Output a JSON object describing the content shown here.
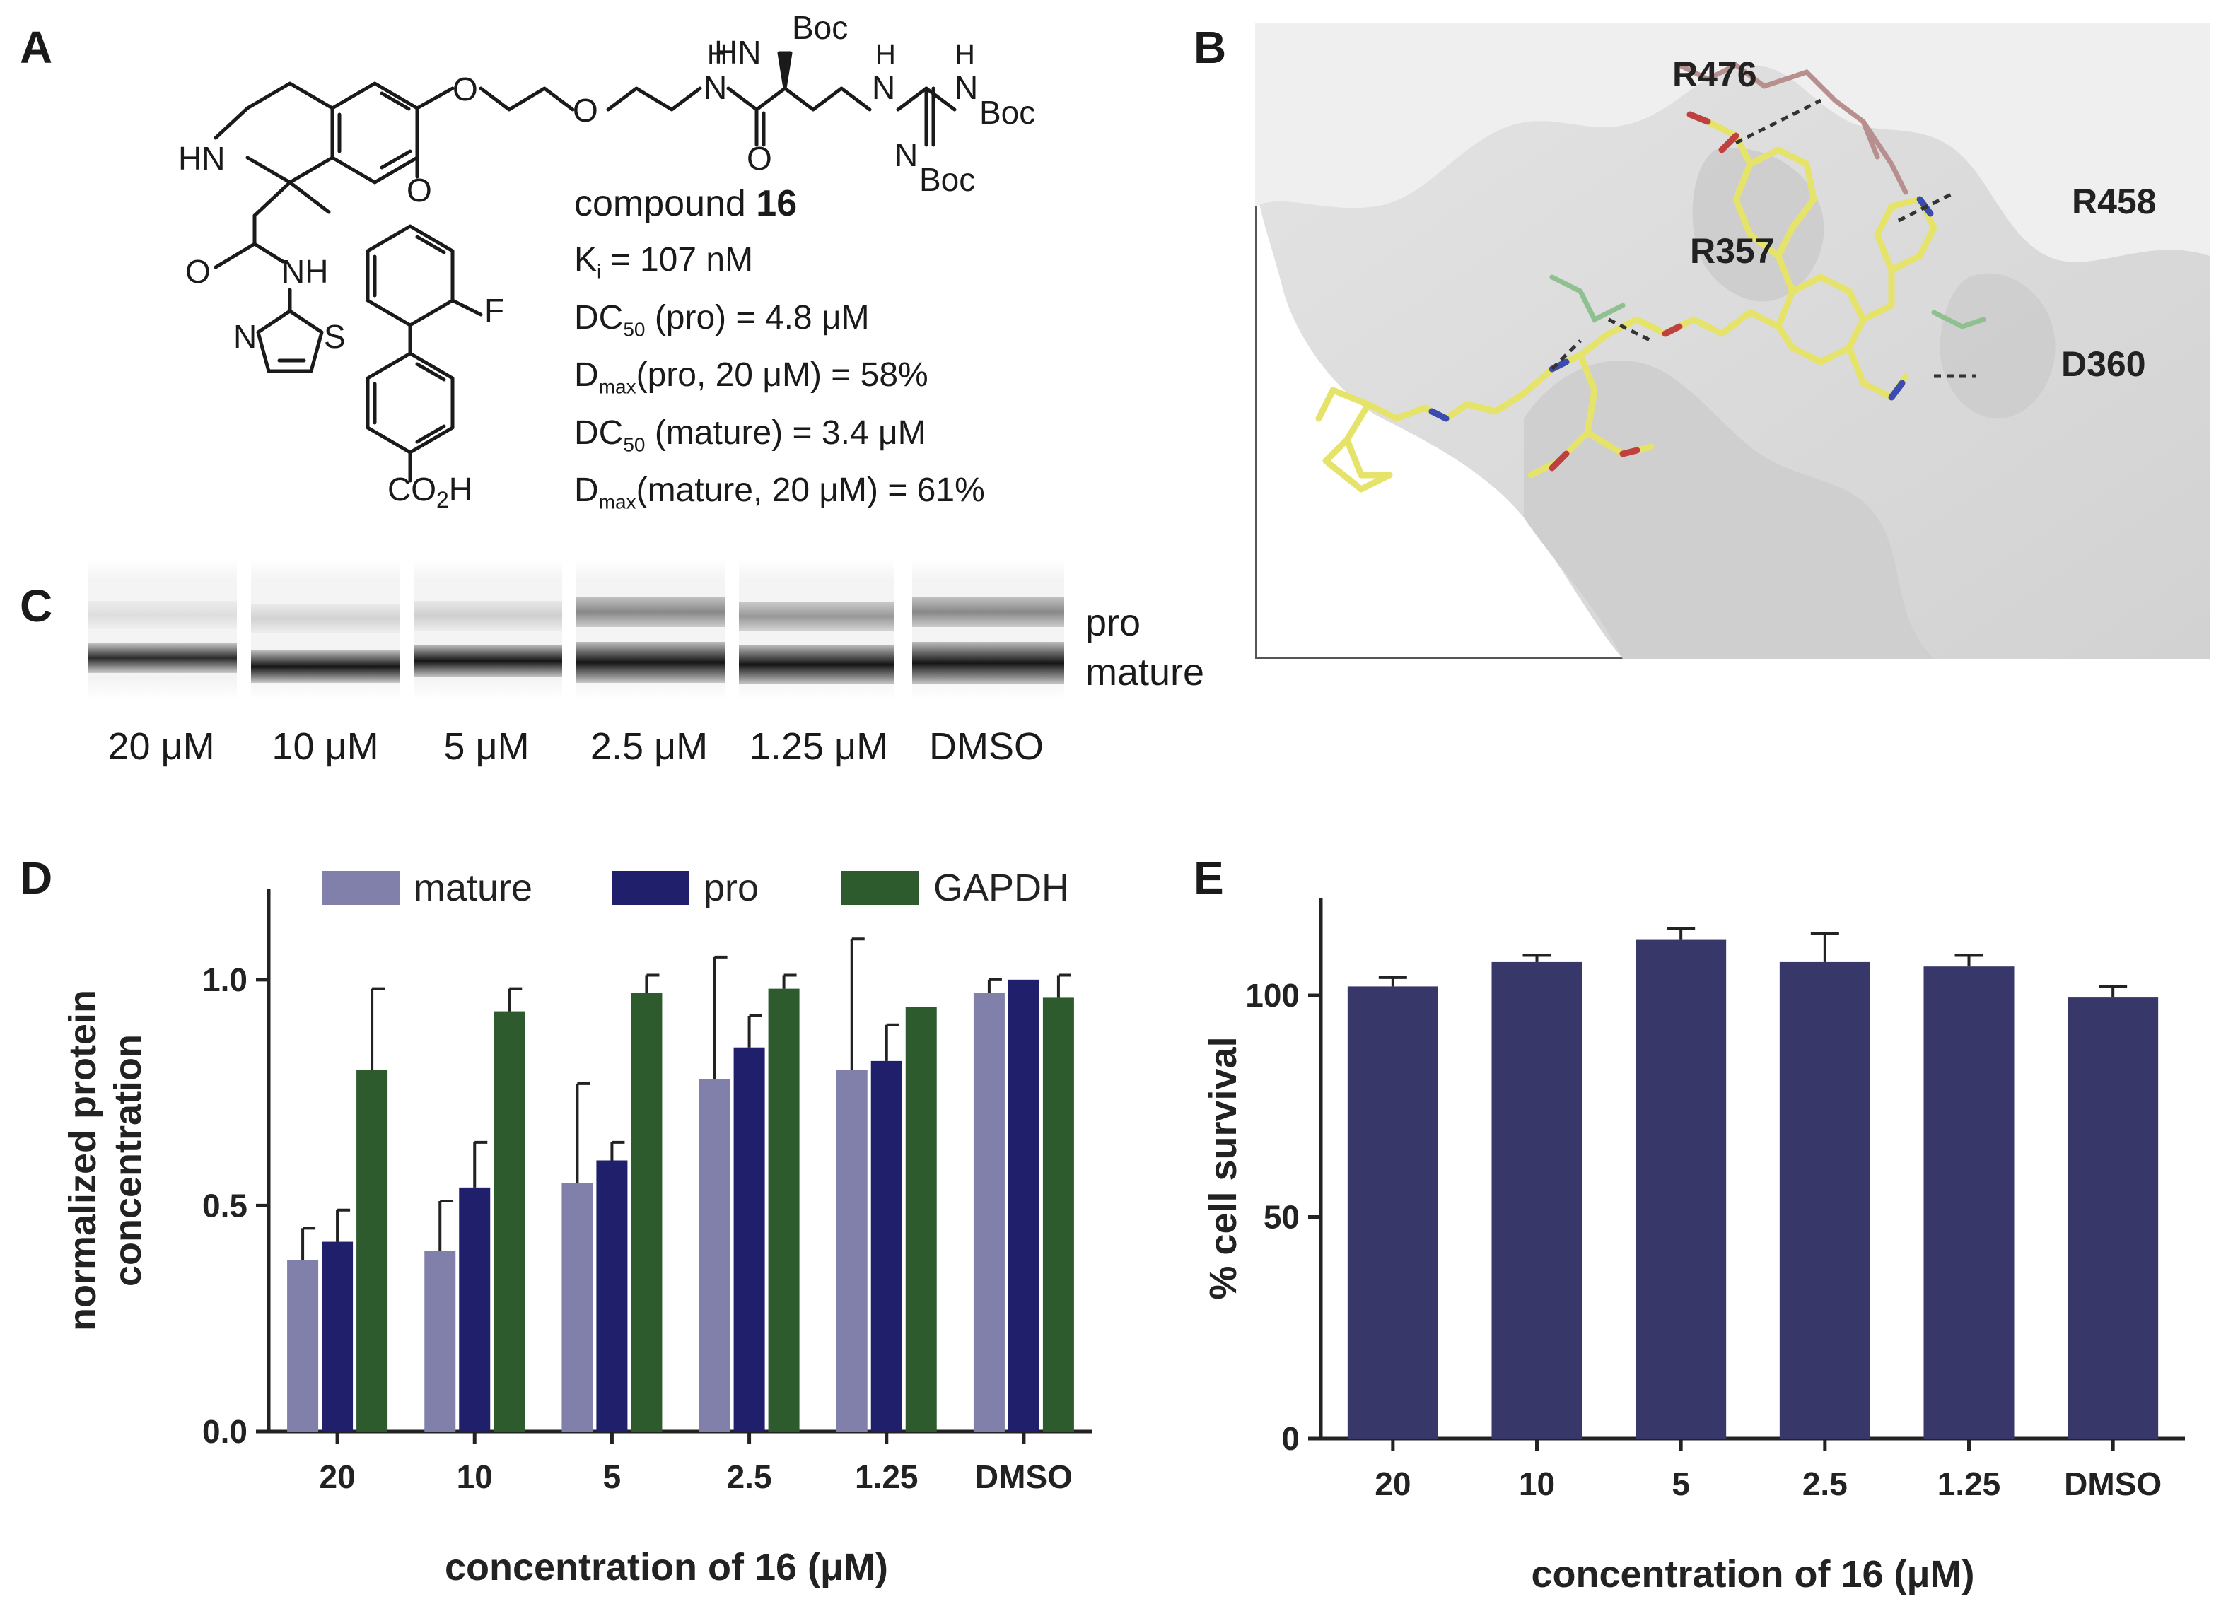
{
  "panels": {
    "a": {
      "letter": "A",
      "compound_prefix": "compound ",
      "compound_number": "16",
      "props": [
        {
          "lead": "K",
          "sub": "i",
          "rest": " = 107 nM"
        },
        {
          "lead": "DC",
          "sub": "50",
          "rest": " (pro) = 4.8 μM"
        },
        {
          "lead": "D",
          "sub": "max",
          "rest": "(pro, 20 μM) = 58%"
        },
        {
          "lead": "DC",
          "sub": "50",
          "rest": " (mature) = 3.4 μM"
        },
        {
          "lead": "D",
          "sub": "max",
          "rest": "(mature, 20 μM) = 61%"
        }
      ],
      "atoms": {
        "hn_boc_top": "HN",
        "boc1": "Boc",
        "boc2": "Boc",
        "boc3": "Boc",
        "h1": "H",
        "n1": "N",
        "h2": "H",
        "n2": "N",
        "h3": "H",
        "n3": "N",
        "n4": "N",
        "o1": "O",
        "o2": "O",
        "o3": "O",
        "o4": "O",
        "hn_ring": "HN",
        "o5": "O",
        "nh": "NH",
        "n_thz": "N",
        "s_thz": "S",
        "f": "F",
        "co2h": "CO",
        "co2h_sub": "2",
        "co2h_h": "H"
      }
    },
    "b": {
      "letter": "B",
      "residues": [
        "R476",
        "R458",
        "R357",
        "D360"
      ]
    },
    "c": {
      "letter": "C",
      "band_labels": [
        "pro",
        "mature"
      ],
      "lane_labels": [
        "20 μM",
        "10 μM",
        "5 μM",
        "2.5 μM",
        "1.25 μM",
        "DMSO"
      ]
    },
    "d": {
      "letter": "D"
    },
    "e": {
      "letter": "E"
    }
  },
  "chart_data": [
    {
      "type": "bar",
      "title": "",
      "xlabel": "concentration of 16 (μM)",
      "ylabel": "normalized protein concentration",
      "ylabel_lines": [
        "normalized protein",
        "concentration"
      ],
      "categories": [
        "20",
        "10",
        "5",
        "2.5",
        "1.25",
        "DMSO"
      ],
      "ylim": [
        0,
        1.2
      ],
      "yticks": [
        "0.0",
        "0.5",
        "1.0"
      ],
      "legend_position": "top",
      "series": [
        {
          "name": "mature",
          "color": "#8080aa",
          "values": [
            0.38,
            0.4,
            0.55,
            0.78,
            0.8,
            0.97
          ],
          "errors": [
            0.07,
            0.11,
            0.22,
            0.27,
            0.29,
            0.03
          ]
        },
        {
          "name": "pro",
          "color": "#1f1f6b",
          "values": [
            0.42,
            0.54,
            0.6,
            0.85,
            0.82,
            1.0
          ],
          "errors": [
            0.07,
            0.1,
            0.04,
            0.07,
            0.08,
            0.0
          ]
        },
        {
          "name": "GAPDH",
          "color": "#2e5b2e",
          "values": [
            0.8,
            0.93,
            0.97,
            0.98,
            0.94,
            0.96
          ],
          "errors": [
            0.18,
            0.05,
            0.04,
            0.03,
            0.0,
            0.05
          ]
        }
      ]
    },
    {
      "type": "bar",
      "title": "",
      "xlabel": "concentration of 16 (μM)",
      "ylabel": "% cell survival",
      "categories": [
        "20",
        "10",
        "5",
        "2.5",
        "1.25",
        "DMSO"
      ],
      "ylim": [
        0,
        122
      ],
      "yticks": [
        "0",
        "50",
        "100"
      ],
      "series": [
        {
          "color": "#373769",
          "values": [
            102,
            107.5,
            112.5,
            107.5,
            106.5,
            99.5
          ],
          "errors": [
            2,
            1.5,
            2.5,
            6.5,
            2.5,
            2.5
          ]
        }
      ]
    }
  ]
}
